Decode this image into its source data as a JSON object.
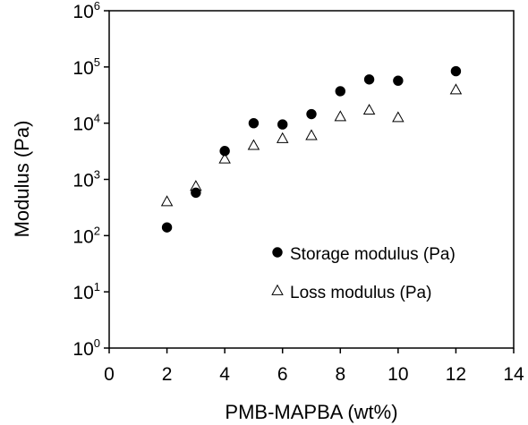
{
  "chart_data": {
    "type": "scatter",
    "title": "",
    "xlabel": "PMB-MAPBA (wt%)",
    "ylabel": "Modulus (Pa)",
    "xlim": [
      0,
      14
    ],
    "ylim": [
      1,
      1000000
    ],
    "y_scale": "log",
    "grid": false,
    "legend_position": "lower-right",
    "x_ticks": [
      0,
      2,
      4,
      6,
      8,
      10,
      12,
      14
    ],
    "y_ticks": [
      {
        "value": 1,
        "base": "10",
        "exp": "0"
      },
      {
        "value": 10,
        "base": "10",
        "exp": "1"
      },
      {
        "value": 100,
        "base": "10",
        "exp": "2"
      },
      {
        "value": 1000,
        "base": "10",
        "exp": "3"
      },
      {
        "value": 10000,
        "base": "10",
        "exp": "4"
      },
      {
        "value": 100000,
        "base": "10",
        "exp": "5"
      },
      {
        "value": 1000000,
        "base": "10",
        "exp": "6"
      }
    ],
    "series": [
      {
        "name": "Storage modulus (Pa)",
        "marker": "filled-circle",
        "color": "#000000",
        "x": [
          2,
          3,
          4,
          5,
          6,
          7,
          8,
          9,
          10,
          12
        ],
        "y": [
          140,
          580,
          3200,
          10000,
          9500,
          14500,
          37000,
          60000,
          57000,
          84000
        ]
      },
      {
        "name": "Loss modulus (Pa)",
        "marker": "open-triangle",
        "color": "#000000",
        "x": [
          2,
          3,
          4,
          5,
          6,
          7,
          8,
          9,
          10,
          12
        ],
        "y": [
          400,
          750,
          2300,
          4000,
          5300,
          6000,
          13000,
          17000,
          12500,
          39000
        ]
      }
    ]
  }
}
